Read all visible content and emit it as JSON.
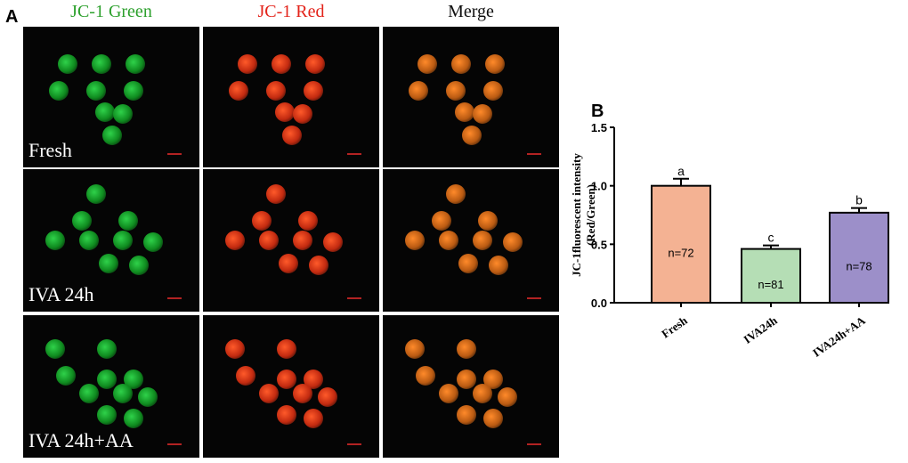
{
  "panel_a": {
    "label": "A",
    "columns": [
      {
        "header": "JC-1 Green",
        "color": "#2ca02c",
        "ball": "#0f8a1f",
        "glow": "#2fd24a"
      },
      {
        "header": "JC-1 Red",
        "color": "#e3231a",
        "ball": "#c22a10",
        "glow": "#ff5a2a"
      },
      {
        "header": "Merge",
        "color": "#111111",
        "ball": "#b95a12",
        "glow": "#ff8a2a"
      }
    ],
    "rows": [
      {
        "label": "Fresh"
      },
      {
        "label": "IVA 24h"
      },
      {
        "label": "IVA 24h+AA"
      }
    ]
  },
  "panel_b": {
    "label": "B"
  },
  "chart_data": {
    "type": "bar",
    "categories": [
      "Fresh",
      "IVA24h",
      "IVA24h+AA"
    ],
    "values": [
      1.0,
      0.46,
      0.77
    ],
    "errors": [
      0.06,
      0.03,
      0.04
    ],
    "letters": [
      "a",
      "c",
      "b"
    ],
    "n_labels": [
      "n=72",
      "n=81",
      "n=78"
    ],
    "colors": [
      "#f4b293",
      "#b5deb5",
      "#9c8fc9"
    ],
    "ylabel_line1": "JC-1fluorescent intensity",
    "ylabel_line2": "(Red/Green)",
    "ylim": [
      0,
      1.5
    ],
    "yticks": [
      "0.0",
      "0.5",
      "1.0",
      "1.5"
    ],
    "ytick_values": [
      0,
      0.5,
      1.0,
      1.5
    ]
  }
}
